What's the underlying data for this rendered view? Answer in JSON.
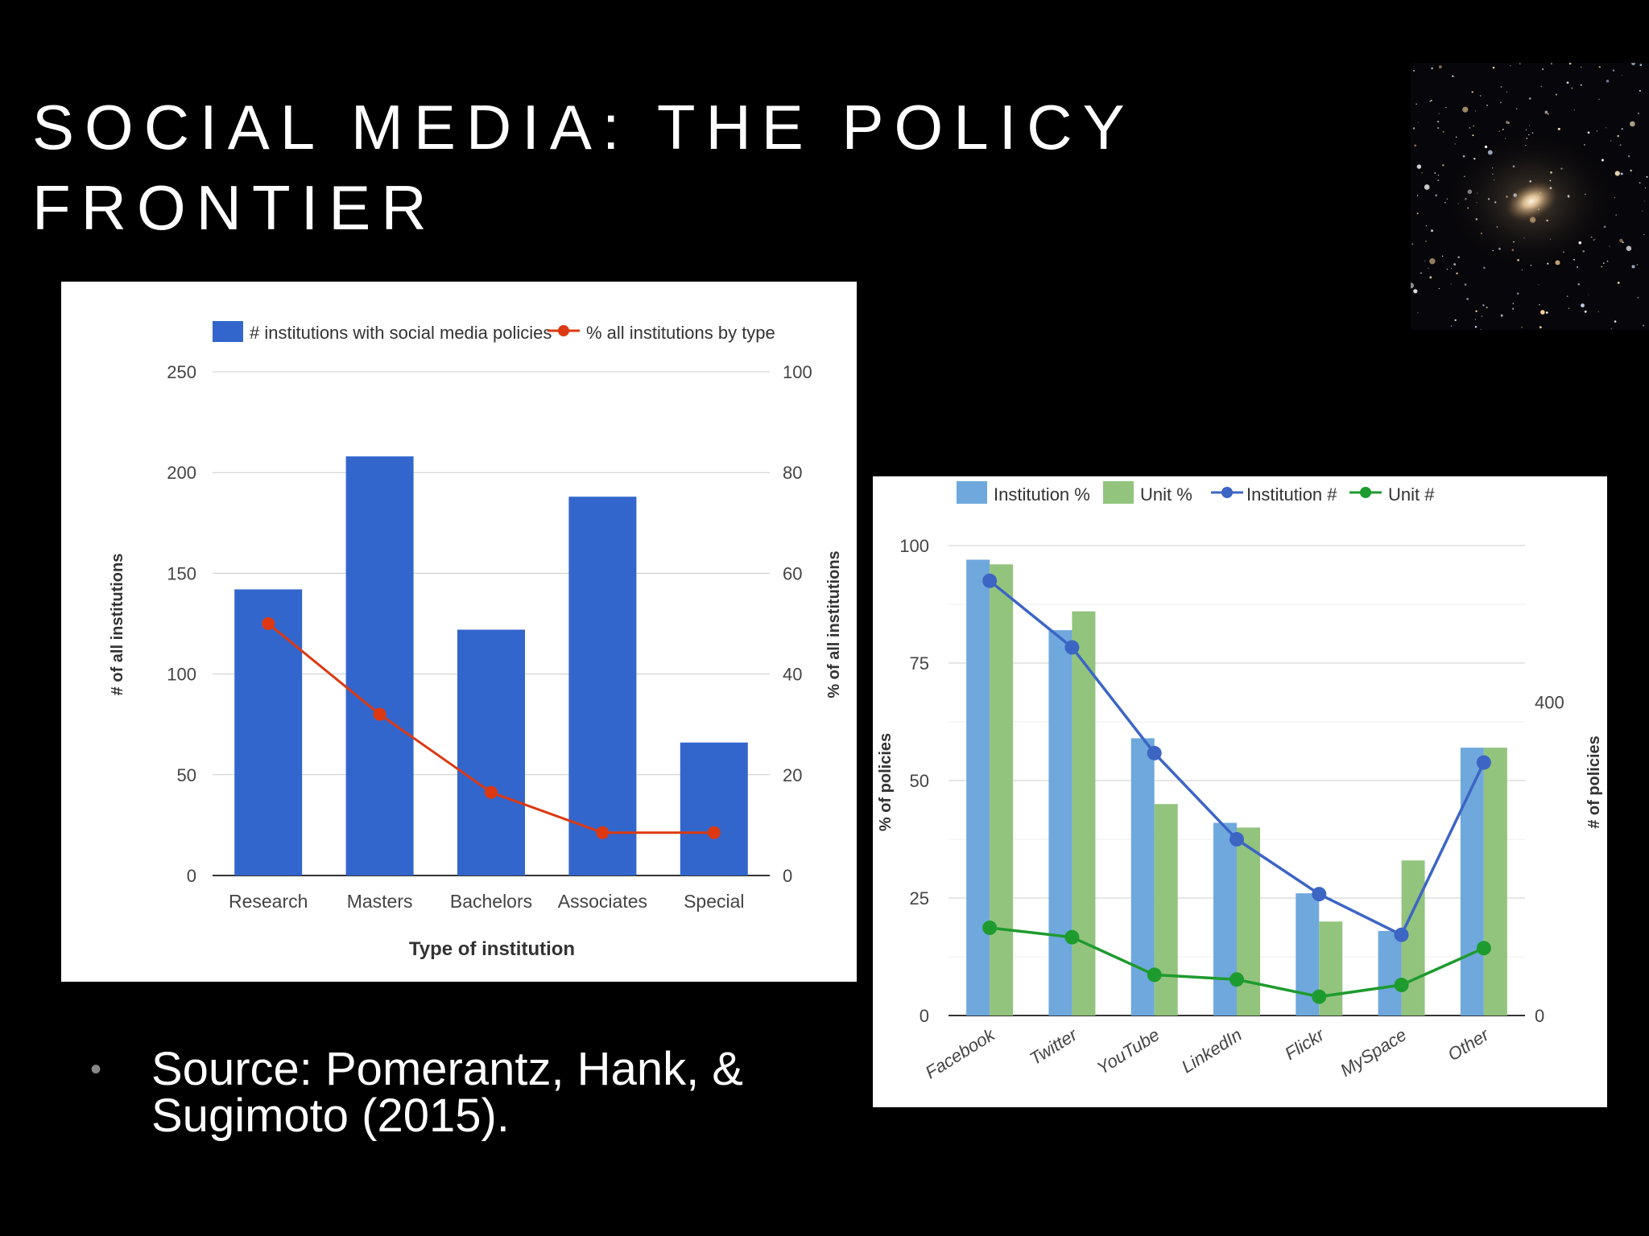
{
  "slide": {
    "title_line1": "SOCIAL MEDIA: THE POLICY",
    "title_line2": "FRONTIER",
    "source_text": "Source: Pomerantz, Hank, & Sugimoto (2015).",
    "bullet": "•"
  },
  "chart_data": [
    {
      "type": "bar",
      "categories": [
        "Research",
        "Masters",
        "Bachelors",
        "Associates",
        "Special"
      ],
      "series": [
        {
          "name": "# institutions with social media policies",
          "kind": "bar",
          "axis": "left",
          "color": "#3366cc",
          "values": [
            142,
            208,
            122,
            188,
            66
          ]
        },
        {
          "name": "% all institutions by type",
          "kind": "line",
          "axis": "right",
          "color": "#dc3912",
          "values": [
            50,
            32,
            16.5,
            8.5,
            8.5
          ]
        }
      ],
      "xlabel": "Type of institution",
      "ylabel": "# of all institutions",
      "y2label": "% of all institutions",
      "ylim": [
        0,
        250
      ],
      "y2lim": [
        0,
        100
      ],
      "yticks": [
        "0",
        "50",
        "100",
        "150",
        "200",
        "250"
      ],
      "y2ticks": [
        "0",
        "20",
        "40",
        "60",
        "80",
        "100"
      ],
      "grid": true,
      "legend": "top"
    },
    {
      "type": "bar",
      "categories": [
        "Facebook",
        "Twitter",
        "YouTube",
        "LinkedIn",
        "Flickr",
        "MySpace",
        "Other"
      ],
      "series": [
        {
          "name": "Institution %",
          "kind": "bar",
          "axis": "left",
          "color": "#6fa8dc",
          "values": [
            97,
            82,
            59,
            41,
            26,
            18,
            57
          ]
        },
        {
          "name": "Unit %",
          "kind": "bar",
          "axis": "left",
          "color": "#93c47d",
          "values": [
            96,
            86,
            45,
            40,
            20,
            33,
            57
          ]
        },
        {
          "name": "Institution #",
          "kind": "line",
          "axis": "right",
          "color": "#3c65c4",
          "values": [
            555,
            470,
            335,
            225,
            155,
            103,
            323
          ]
        },
        {
          "name": "Unit #",
          "kind": "line",
          "axis": "right",
          "color": "#1e9b2e",
          "values": [
            112,
            100,
            52,
            46,
            24,
            39,
            86
          ]
        }
      ],
      "ylabel": "% of policies",
      "y2label": "# of policies",
      "ylim": [
        0,
        100
      ],
      "y2lim": [
        0,
        600
      ],
      "yticks": [
        "0",
        "25",
        "50",
        "75",
        "100"
      ],
      "y2ticks": [
        "0",
        "400"
      ],
      "grid": true,
      "legend": "top"
    }
  ]
}
